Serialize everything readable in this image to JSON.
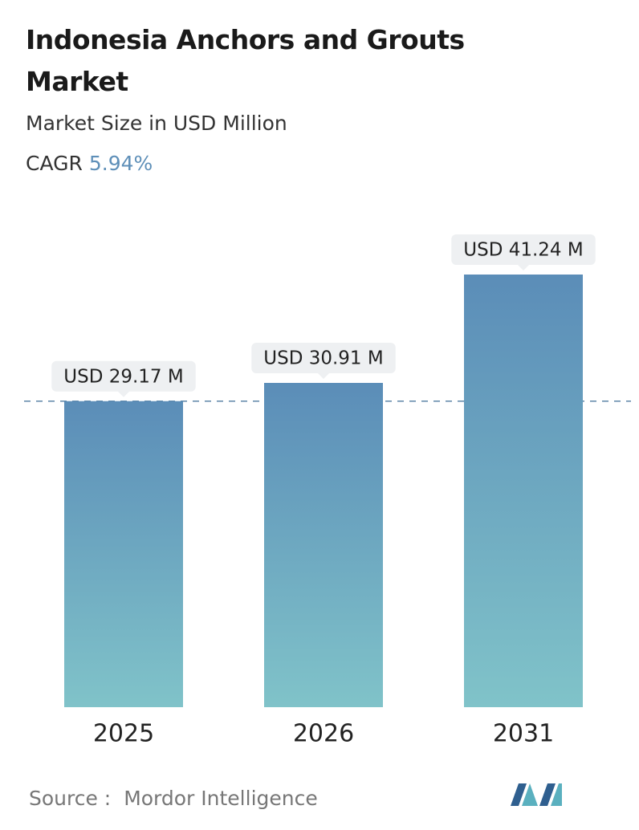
{
  "chart_data": {
    "type": "bar",
    "title": "Indonesia Anchors and Grouts Market",
    "subtitle": "Market Size in USD Million",
    "cagr_label": "CAGR",
    "cagr": "5.94%",
    "categories": [
      "2025",
      "2026",
      "2031"
    ],
    "values": [
      29.17,
      30.91,
      41.24
    ],
    "value_labels": [
      "USD 29.17 M",
      "USD 30.91 M",
      "USD 41.24 M"
    ],
    "colors": [
      "#5b8db8",
      "#80c3c9"
    ],
    "source_label": "Source :",
    "source": "Mordor Intelligence"
  }
}
